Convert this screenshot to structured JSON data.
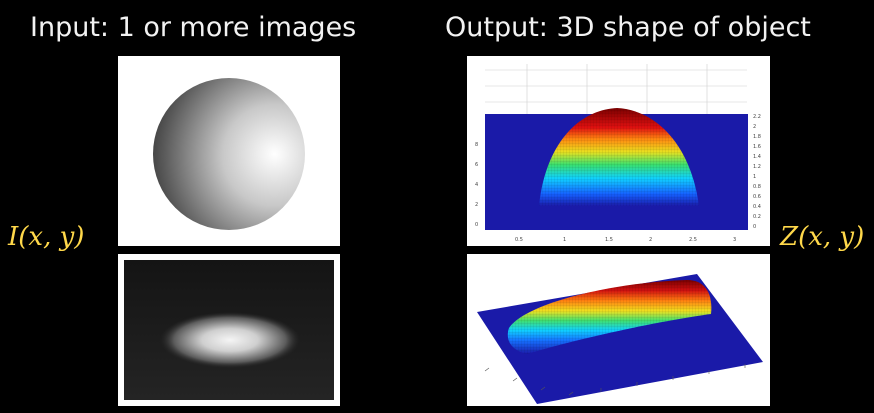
{
  "input": {
    "heading": "Input: 1 or more images",
    "variable": "I(x, y)"
  },
  "output": {
    "heading": "Output: 3D shape of object",
    "variable": "Z(x, y)"
  },
  "dome_plot": {
    "x_ticks": [
      "0.5",
      "1",
      "1.5",
      "2",
      "2.5",
      "3"
    ],
    "y_ticks": [
      "0",
      "2",
      "4",
      "6",
      "8"
    ],
    "z_ticks": [
      "0",
      "0.2",
      "0.4",
      "0.6",
      "0.8",
      "1",
      "1.2",
      "1.4",
      "1.6",
      "1.8",
      "2",
      "2.2"
    ]
  },
  "colors": {
    "background": "#000000",
    "heading_text": "#f2f2f2",
    "variable_text": "#ffd84a",
    "surface_base": "#1a1aa8",
    "surface_peak": "#8b0000"
  }
}
